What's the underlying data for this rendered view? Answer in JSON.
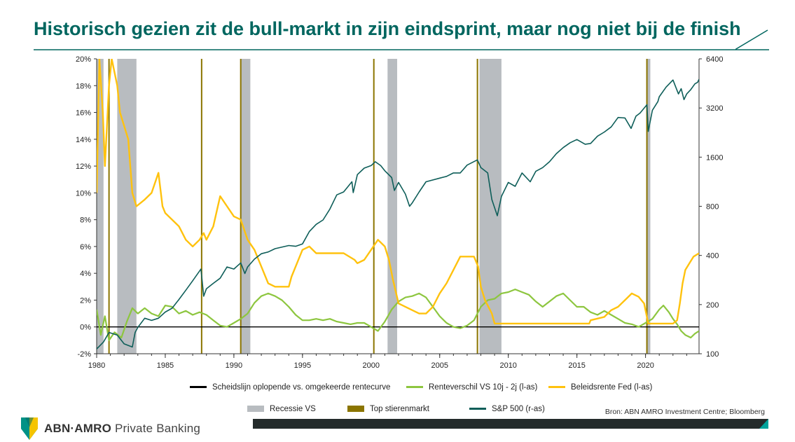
{
  "title": "Historisch gezien zit de bull-markt in zijn eindsprint, maar nog niet bij de finish",
  "source": "Bron: ABN AMRO Investment Centre; Bloomberg",
  "brand": {
    "name": "ABN·AMRO",
    "sub": "Private Banking"
  },
  "legend": {
    "row1": [
      "Scheidslijn oplopende vs. omgekeerde rentecurve",
      "Renteverschil VS 10j - 2j (l-as)",
      "Beleidsrente Fed (l-as)"
    ],
    "row2": [
      "Recessie VS",
      "Top stierenmarkt",
      "S&P 500 (r-as)"
    ]
  },
  "chart_data": {
    "type": "line",
    "x_ticks": [
      "1980",
      "1985",
      "1990",
      "1995",
      "2000",
      "2005",
      "2010",
      "2015",
      "2020"
    ],
    "y_left_ticks": [
      "-2%",
      "0%",
      "2%",
      "4%",
      "6%",
      "8%",
      "10%",
      "12%",
      "14%",
      "16%",
      "18%",
      "20%"
    ],
    "y_right_ticks": [
      "100",
      "200",
      "400",
      "800",
      "1600",
      "3200",
      "6400"
    ],
    "y_left_range": [
      -2,
      20
    ],
    "y_right_range": [
      100,
      6400
    ],
    "y_right_scale": "log",
    "x_range": [
      1980,
      2023.9
    ],
    "legend_position": "bottom",
    "colors": {
      "sp500": "#0e5e59",
      "spread": "#8dc63f",
      "fed": "#ffc20e",
      "recession": "#b8bcc0",
      "top": "#8b7500",
      "zero": "#000000",
      "title": "#00665f"
    },
    "recessions": [
      [
        1980.0,
        1980.5
      ],
      [
        1981.5,
        1982.9
      ],
      [
        1990.5,
        1991.2
      ],
      [
        2001.2,
        2001.9
      ],
      [
        2007.9,
        2009.5
      ],
      [
        2020.1,
        2020.35
      ]
    ],
    "bull_market_tops": [
      1980.9,
      1987.65,
      1990.5,
      2000.2,
      2007.75,
      2020.1
    ],
    "series": [
      {
        "name": "Renteverschil VS 10j - 2j (l-as)",
        "axis": "left",
        "points": [
          [
            1980,
            1.3
          ],
          [
            1980.3,
            -0.6
          ],
          [
            1980.6,
            0.8
          ],
          [
            1980.9,
            -1.0
          ],
          [
            1981.3,
            -0.4
          ],
          [
            1981.8,
            -0.8
          ],
          [
            1982.2,
            0.4
          ],
          [
            1982.6,
            1.4
          ],
          [
            1983,
            1.0
          ],
          [
            1983.5,
            1.4
          ],
          [
            1984,
            1.0
          ],
          [
            1984.5,
            0.8
          ],
          [
            1985,
            1.6
          ],
          [
            1985.5,
            1.5
          ],
          [
            1986,
            1.0
          ],
          [
            1986.5,
            1.2
          ],
          [
            1987,
            0.9
          ],
          [
            1987.5,
            1.1
          ],
          [
            1988,
            0.9
          ],
          [
            1988.5,
            0.5
          ],
          [
            1989,
            0.1
          ],
          [
            1989.5,
            0.0
          ],
          [
            1990,
            0.3
          ],
          [
            1990.5,
            0.6
          ],
          [
            1991,
            1.0
          ],
          [
            1991.5,
            1.8
          ],
          [
            1992,
            2.3
          ],
          [
            1992.5,
            2.5
          ],
          [
            1993,
            2.3
          ],
          [
            1993.5,
            2.0
          ],
          [
            1994,
            1.5
          ],
          [
            1994.5,
            0.9
          ],
          [
            1995,
            0.5
          ],
          [
            1995.5,
            0.5
          ],
          [
            1996,
            0.6
          ],
          [
            1996.5,
            0.5
          ],
          [
            1997,
            0.6
          ],
          [
            1997.5,
            0.4
          ],
          [
            1998,
            0.3
          ],
          [
            1998.5,
            0.2
          ],
          [
            1999,
            0.3
          ],
          [
            1999.5,
            0.3
          ],
          [
            2000,
            0.0
          ],
          [
            2000.5,
            -0.3
          ],
          [
            2001,
            0.4
          ],
          [
            2001.5,
            1.3
          ],
          [
            2002,
            1.9
          ],
          [
            2002.5,
            2.2
          ],
          [
            2003,
            2.3
          ],
          [
            2003.5,
            2.5
          ],
          [
            2004,
            2.2
          ],
          [
            2004.5,
            1.5
          ],
          [
            2005,
            0.8
          ],
          [
            2005.5,
            0.3
          ],
          [
            2006,
            0.0
          ],
          [
            2006.5,
            -0.1
          ],
          [
            2007,
            0.1
          ],
          [
            2007.5,
            0.5
          ],
          [
            2008,
            1.5
          ],
          [
            2008.5,
            2.0
          ],
          [
            2009,
            2.1
          ],
          [
            2009.5,
            2.5
          ],
          [
            2010,
            2.6
          ],
          [
            2010.5,
            2.8
          ],
          [
            2011,
            2.6
          ],
          [
            2011.5,
            2.4
          ],
          [
            2012,
            1.9
          ],
          [
            2012.5,
            1.5
          ],
          [
            2013,
            1.9
          ],
          [
            2013.5,
            2.3
          ],
          [
            2014,
            2.5
          ],
          [
            2014.5,
            2.0
          ],
          [
            2015,
            1.5
          ],
          [
            2015.5,
            1.5
          ],
          [
            2016,
            1.1
          ],
          [
            2016.5,
            0.9
          ],
          [
            2017,
            1.2
          ],
          [
            2017.5,
            0.9
          ],
          [
            2018,
            0.6
          ],
          [
            2018.5,
            0.3
          ],
          [
            2019,
            0.2
          ],
          [
            2019.5,
            0.0
          ],
          [
            2020,
            0.3
          ],
          [
            2020.5,
            0.6
          ],
          [
            2021,
            1.3
          ],
          [
            2021.3,
            1.6
          ],
          [
            2021.7,
            1.1
          ],
          [
            2022,
            0.6
          ],
          [
            2022.3,
            0.2
          ],
          [
            2022.6,
            -0.3
          ],
          [
            2022.9,
            -0.6
          ],
          [
            2023.3,
            -0.8
          ],
          [
            2023.6,
            -0.5
          ],
          [
            2023.9,
            -0.3
          ]
        ]
      },
      {
        "name": "Beleidsrente Fed (l-as)",
        "axis": "left",
        "points": [
          [
            1980,
            10
          ],
          [
            1980.2,
            20
          ],
          [
            1980.45,
            16
          ],
          [
            1980.6,
            12
          ],
          [
            1980.9,
            18
          ],
          [
            1981.1,
            20
          ],
          [
            1981.5,
            18
          ],
          [
            1981.7,
            16
          ],
          [
            1982,
            15
          ],
          [
            1982.3,
            14
          ],
          [
            1982.6,
            10
          ],
          [
            1982.9,
            9
          ],
          [
            1983.5,
            9.5
          ],
          [
            1984,
            10
          ],
          [
            1984.5,
            11.5
          ],
          [
            1984.8,
            9
          ],
          [
            1985,
            8.5
          ],
          [
            1985.5,
            8
          ],
          [
            1986,
            7.5
          ],
          [
            1986.5,
            6.5
          ],
          [
            1987,
            6
          ],
          [
            1987.5,
            6.5
          ],
          [
            1987.8,
            7
          ],
          [
            1988,
            6.5
          ],
          [
            1988.5,
            7.5
          ],
          [
            1989,
            9.75
          ],
          [
            1989.5,
            9
          ],
          [
            1990,
            8.25
          ],
          [
            1990.5,
            8
          ],
          [
            1991,
            6.5
          ],
          [
            1991.5,
            5.75
          ],
          [
            1992,
            4.5
          ],
          [
            1992.5,
            3.25
          ],
          [
            1993,
            3
          ],
          [
            1994,
            3
          ],
          [
            1994.2,
            3.75
          ],
          [
            1994.6,
            4.75
          ],
          [
            1995,
            5.75
          ],
          [
            1995.5,
            6
          ],
          [
            1996,
            5.5
          ],
          [
            1997,
            5.5
          ],
          [
            1998,
            5.5
          ],
          [
            1998.8,
            5
          ],
          [
            1999,
            4.75
          ],
          [
            1999.5,
            5
          ],
          [
            2000,
            5.75
          ],
          [
            2000.5,
            6.5
          ],
          [
            2001,
            6
          ],
          [
            2001.3,
            5
          ],
          [
            2001.6,
            3.5
          ],
          [
            2002,
            1.75
          ],
          [
            2003,
            1.25
          ],
          [
            2003.5,
            1
          ],
          [
            2004,
            1
          ],
          [
            2004.5,
            1.5
          ],
          [
            2005,
            2.5
          ],
          [
            2005.5,
            3.25
          ],
          [
            2006,
            4.25
          ],
          [
            2006.5,
            5.25
          ],
          [
            2007,
            5.25
          ],
          [
            2007.5,
            5.25
          ],
          [
            2007.8,
            4.5
          ],
          [
            2008,
            3
          ],
          [
            2008.3,
            2
          ],
          [
            2008.8,
            1
          ],
          [
            2009,
            0.25
          ],
          [
            2010,
            0.25
          ],
          [
            2015.9,
            0.25
          ],
          [
            2016,
            0.5
          ],
          [
            2017,
            0.75
          ],
          [
            2017.5,
            1.25
          ],
          [
            2018,
            1.5
          ],
          [
            2018.5,
            2
          ],
          [
            2019,
            2.5
          ],
          [
            2019.5,
            2.25
          ],
          [
            2019.9,
            1.75
          ],
          [
            2020.2,
            0.25
          ],
          [
            2022,
            0.25
          ],
          [
            2022.3,
            0.5
          ],
          [
            2022.5,
            1.75
          ],
          [
            2022.7,
            3.25
          ],
          [
            2022.9,
            4.25
          ],
          [
            2023.2,
            4.75
          ],
          [
            2023.5,
            5.25
          ],
          [
            2023.9,
            5.5
          ]
        ]
      },
      {
        "name": "S&P 500 (r-as)",
        "axis": "right",
        "points": [
          [
            1980,
            107
          ],
          [
            1980.5,
            118
          ],
          [
            1980.9,
            135
          ],
          [
            1981.5,
            130
          ],
          [
            1982,
            115
          ],
          [
            1982.6,
            110
          ],
          [
            1982.8,
            135
          ],
          [
            1983,
            145
          ],
          [
            1983.5,
            165
          ],
          [
            1984,
            160
          ],
          [
            1984.5,
            165
          ],
          [
            1985,
            180
          ],
          [
            1985.5,
            190
          ],
          [
            1986,
            215
          ],
          [
            1986.5,
            245
          ],
          [
            1987,
            280
          ],
          [
            1987.6,
            330
          ],
          [
            1987.8,
            225
          ],
          [
            1988,
            250
          ],
          [
            1988.5,
            270
          ],
          [
            1989,
            290
          ],
          [
            1989.5,
            340
          ],
          [
            1990,
            330
          ],
          [
            1990.5,
            360
          ],
          [
            1990.8,
            310
          ],
          [
            1991,
            340
          ],
          [
            1991.5,
            380
          ],
          [
            1992,
            410
          ],
          [
            1992.5,
            420
          ],
          [
            1993,
            440
          ],
          [
            1994,
            460
          ],
          [
            1994.5,
            455
          ],
          [
            1995,
            470
          ],
          [
            1995.5,
            560
          ],
          [
            1996,
            620
          ],
          [
            1996.5,
            660
          ],
          [
            1997,
            770
          ],
          [
            1997.5,
            940
          ],
          [
            1998,
            980
          ],
          [
            1998.6,
            1130
          ],
          [
            1998.7,
            970
          ],
          [
            1999,
            1250
          ],
          [
            1999.5,
            1370
          ],
          [
            2000,
            1420
          ],
          [
            2000.3,
            1500
          ],
          [
            2000.7,
            1420
          ],
          [
            2001,
            1320
          ],
          [
            2001.5,
            1200
          ],
          [
            2001.7,
            1000
          ],
          [
            2002,
            1120
          ],
          [
            2002.5,
            950
          ],
          [
            2002.8,
            800
          ],
          [
            2003,
            840
          ],
          [
            2003.5,
            980
          ],
          [
            2004,
            1130
          ],
          [
            2005,
            1190
          ],
          [
            2005.5,
            1220
          ],
          [
            2006,
            1280
          ],
          [
            2006.5,
            1280
          ],
          [
            2007,
            1430
          ],
          [
            2007.75,
            1540
          ],
          [
            2008,
            1380
          ],
          [
            2008.5,
            1280
          ],
          [
            2008.8,
            880
          ],
          [
            2009.2,
            700
          ],
          [
            2009.5,
            920
          ],
          [
            2010,
            1120
          ],
          [
            2010.5,
            1060
          ],
          [
            2011,
            1280
          ],
          [
            2011.6,
            1130
          ],
          [
            2012,
            1310
          ],
          [
            2012.5,
            1380
          ],
          [
            2013,
            1500
          ],
          [
            2013.5,
            1680
          ],
          [
            2014,
            1830
          ],
          [
            2014.5,
            1960
          ],
          [
            2015,
            2050
          ],
          [
            2015.6,
            1920
          ],
          [
            2016,
            1940
          ],
          [
            2016.5,
            2150
          ],
          [
            2017,
            2280
          ],
          [
            2017.5,
            2450
          ],
          [
            2018,
            2800
          ],
          [
            2018.5,
            2780
          ],
          [
            2018.95,
            2400
          ],
          [
            2019.3,
            2850
          ],
          [
            2019.6,
            2980
          ],
          [
            2020.1,
            3350
          ],
          [
            2020.2,
            2300
          ],
          [
            2020.5,
            3100
          ],
          [
            2020.9,
            3500
          ],
          [
            2021,
            3750
          ],
          [
            2021.5,
            4300
          ],
          [
            2022,
            4750
          ],
          [
            2022.4,
            3900
          ],
          [
            2022.6,
            4200
          ],
          [
            2022.8,
            3600
          ],
          [
            2023,
            3900
          ],
          [
            2023.3,
            4150
          ],
          [
            2023.6,
            4500
          ],
          [
            2023.8,
            4600
          ],
          [
            2023.9,
            4800
          ]
        ]
      }
    ]
  }
}
